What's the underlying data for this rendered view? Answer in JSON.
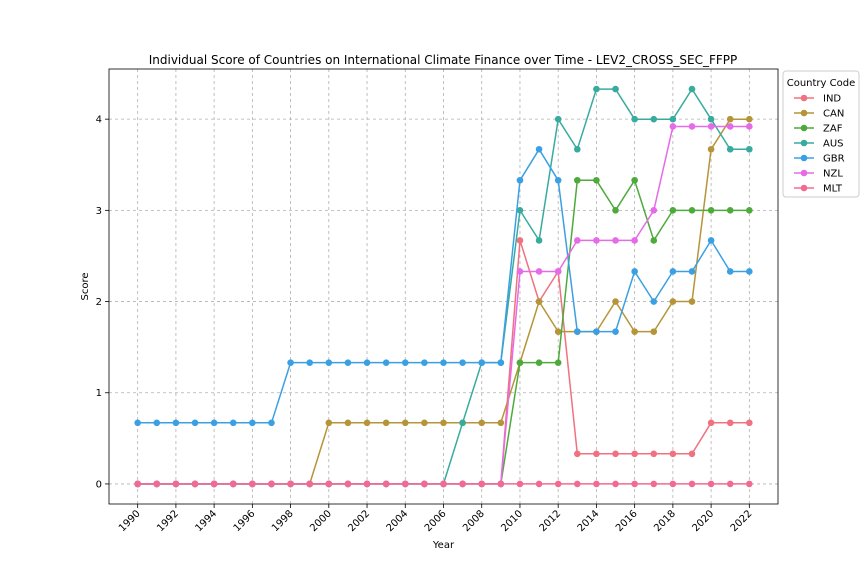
{
  "chart_data": {
    "type": "line",
    "title": "Individual Score of Countries on International Climate Finance over Time - LEV2_CROSS_SEC_FFPP",
    "xlabel": "Year",
    "ylabel": "Score",
    "xlim": [
      1988.5,
      2023.5
    ],
    "ylim": [
      -0.22,
      4.55
    ],
    "x_ticks": [
      "1990",
      "1992",
      "1994",
      "1996",
      "1998",
      "2000",
      "2002",
      "2004",
      "2006",
      "2008",
      "2010",
      "2012",
      "2014",
      "2016",
      "2018",
      "2020",
      "2022"
    ],
    "y_ticks": [
      "0",
      "1",
      "2",
      "3",
      "4"
    ],
    "grid": true,
    "legend": {
      "title": "Country Code",
      "placement": "upper right, outside plot"
    },
    "x": [
      1990,
      1991,
      1992,
      1993,
      1994,
      1995,
      1996,
      1997,
      1998,
      1999,
      2000,
      2001,
      2002,
      2003,
      2004,
      2005,
      2006,
      2007,
      2008,
      2009,
      2010,
      2011,
      2012,
      2013,
      2014,
      2015,
      2016,
      2017,
      2018,
      2019,
      2020,
      2021,
      2022
    ],
    "series": [
      {
        "name": "IND",
        "color": "#f0717f",
        "values": [
          0,
          0,
          0,
          0,
          0,
          0,
          0,
          0,
          0,
          0,
          0,
          0,
          0,
          0,
          0,
          0,
          0,
          0,
          0,
          0,
          2.67,
          2.0,
          2.33,
          0.33,
          0.33,
          0.33,
          0.33,
          0.33,
          0.33,
          0.33,
          0.67,
          0.67,
          0.67
        ]
      },
      {
        "name": "CAN",
        "color": "#b69438",
        "values": [
          0,
          0,
          0,
          0,
          0,
          0,
          0,
          0,
          0,
          0,
          0.67,
          0.67,
          0.67,
          0.67,
          0.67,
          0.67,
          0.67,
          0.67,
          0.67,
          0.67,
          1.33,
          2.0,
          1.67,
          1.67,
          1.67,
          2.0,
          1.67,
          1.67,
          2.0,
          2.0,
          3.67,
          4.0,
          4.0
        ]
      },
      {
        "name": "ZAF",
        "color": "#4daa3b",
        "values": [
          0,
          0,
          0,
          0,
          0,
          0,
          0,
          0,
          0,
          0,
          0,
          0,
          0,
          0,
          0,
          0,
          0,
          0,
          0,
          0,
          1.33,
          1.33,
          1.33,
          3.33,
          3.33,
          3.0,
          3.33,
          2.67,
          3.0,
          3.0,
          3.0,
          3.0,
          3.0
        ]
      },
      {
        "name": "AUS",
        "color": "#38ab9f",
        "values": [
          0,
          0,
          0,
          0,
          0,
          0,
          0,
          0,
          0,
          0,
          0,
          0,
          0,
          0,
          0,
          0,
          0,
          0.67,
          1.33,
          1.33,
          3.0,
          2.67,
          4.0,
          3.67,
          4.33,
          4.33,
          4.0,
          4.0,
          4.0,
          4.33,
          4.0,
          3.67,
          3.67
        ]
      },
      {
        "name": "GBR",
        "color": "#3ba0e3",
        "values": [
          0.67,
          0.67,
          0.67,
          0.67,
          0.67,
          0.67,
          0.67,
          0.67,
          1.33,
          1.33,
          1.33,
          1.33,
          1.33,
          1.33,
          1.33,
          1.33,
          1.33,
          1.33,
          1.33,
          1.33,
          3.33,
          3.67,
          3.33,
          1.67,
          1.67,
          1.67,
          2.33,
          2.0,
          2.33,
          2.33,
          2.67,
          2.33,
          2.33
        ]
      },
      {
        "name": "NZL",
        "color": "#e66be8",
        "values": [
          0,
          0,
          0,
          0,
          0,
          0,
          0,
          0,
          0,
          0,
          0,
          0,
          0,
          0,
          0,
          0,
          0,
          0,
          0,
          0,
          2.33,
          2.33,
          2.33,
          2.67,
          2.67,
          2.67,
          2.67,
          3.0,
          3.92,
          3.92,
          3.92,
          3.92,
          3.92
        ]
      },
      {
        "name": "MLT",
        "color": "#f16a92",
        "values": [
          0,
          0,
          0,
          0,
          0,
          0,
          0,
          0,
          0,
          0,
          0,
          0,
          0,
          0,
          0,
          0,
          0,
          0,
          0,
          0,
          0,
          0,
          0,
          0,
          0,
          0,
          0,
          0,
          0,
          0,
          0,
          0,
          0
        ]
      }
    ]
  }
}
